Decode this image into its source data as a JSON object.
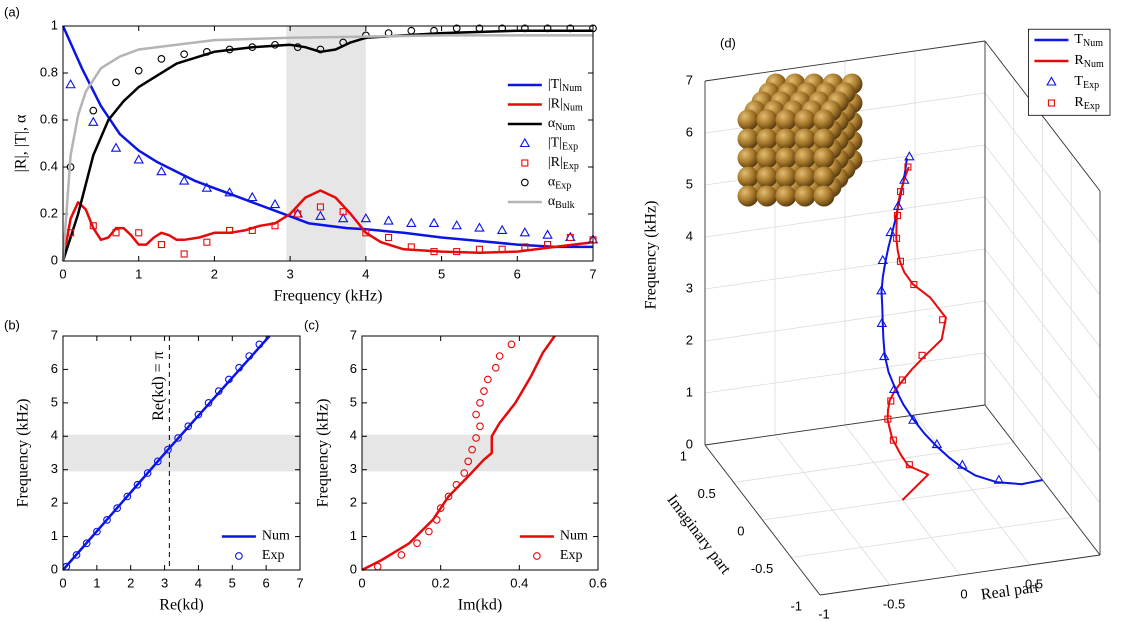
{
  "chart_data": [
    {
      "type": "line",
      "panel_label": "(a)",
      "xlabel": "Frequency (kHz)",
      "ylabel": "|R|, |T|, α",
      "xlim": [
        0,
        7
      ],
      "xticks": [
        0,
        1,
        2,
        3,
        4,
        5,
        6,
        7
      ],
      "ylim": [
        0,
        1
      ],
      "yticks": [
        0,
        0.2,
        0.4,
        0.6,
        0.8,
        1
      ],
      "shaded_xlim": [
        2.95,
        4
      ],
      "legend": "center right",
      "series": [
        {
          "name": "|T|",
          "subscript": "Num",
          "color": "#0a14e6",
          "x": [
            0,
            0.25,
            0.5,
            0.75,
            1,
            1.25,
            1.5,
            1.75,
            2,
            2.25,
            2.5,
            2.75,
            3,
            3.25,
            3.5,
            3.75,
            4,
            4.5,
            5,
            5.5,
            6,
            6.5,
            7
          ],
          "y": [
            1,
            0.82,
            0.66,
            0.54,
            0.47,
            0.42,
            0.38,
            0.34,
            0.31,
            0.28,
            0.25,
            0.22,
            0.19,
            0.16,
            0.15,
            0.14,
            0.135,
            0.12,
            0.1,
            0.085,
            0.07,
            0.06,
            0.06
          ]
        },
        {
          "name": "|R|",
          "subscript": "Num",
          "color": "#e60a0a",
          "x": [
            0,
            0.1,
            0.2,
            0.3,
            0.4,
            0.5,
            0.6,
            0.7,
            0.8,
            0.9,
            1,
            1.1,
            1.2,
            1.3,
            1.4,
            1.5,
            1.6,
            1.8,
            2,
            2.2,
            2.4,
            2.6,
            2.8,
            3,
            3.2,
            3.4,
            3.6,
            3.8,
            4,
            4.2,
            4.5,
            5,
            5.5,
            6,
            6.5,
            7
          ],
          "y": [
            0,
            0.18,
            0.25,
            0.22,
            0.14,
            0.09,
            0.1,
            0.14,
            0.14,
            0.11,
            0.07,
            0.07,
            0.1,
            0.12,
            0.11,
            0.09,
            0.09,
            0.1,
            0.12,
            0.12,
            0.13,
            0.15,
            0.16,
            0.2,
            0.27,
            0.3,
            0.27,
            0.2,
            0.12,
            0.08,
            0.05,
            0.04,
            0.035,
            0.04,
            0.06,
            0.08
          ]
        },
        {
          "name": "α",
          "subscript": "Num",
          "color": "#000000",
          "x": [
            0,
            0.2,
            0.4,
            0.6,
            0.8,
            1,
            1.25,
            1.5,
            2,
            2.5,
            3,
            3.2,
            3.4,
            3.6,
            3.8,
            4,
            4.5,
            5,
            6,
            7
          ],
          "y": [
            0,
            0.2,
            0.45,
            0.6,
            0.68,
            0.74,
            0.79,
            0.84,
            0.89,
            0.91,
            0.92,
            0.91,
            0.89,
            0.9,
            0.93,
            0.95,
            0.96,
            0.97,
            0.98,
            0.98
          ]
        },
        {
          "name": "|T|",
          "subscript": "Exp",
          "color": "#0a14e6",
          "marker": "triangle",
          "x": [
            0.1,
            0.4,
            0.7,
            1.0,
            1.3,
            1.6,
            1.9,
            2.2,
            2.5,
            2.8,
            3.1,
            3.4,
            3.7,
            4.0,
            4.3,
            4.6,
            4.9,
            5.2,
            5.5,
            5.8,
            6.1,
            6.4,
            6.7,
            7.0
          ],
          "y": [
            0.75,
            0.59,
            0.48,
            0.43,
            0.38,
            0.34,
            0.31,
            0.29,
            0.27,
            0.24,
            0.2,
            0.19,
            0.18,
            0.18,
            0.17,
            0.16,
            0.16,
            0.15,
            0.14,
            0.13,
            0.12,
            0.11,
            0.1,
            0.09
          ]
        },
        {
          "name": "|R|",
          "subscript": "Exp",
          "color": "#e60a0a",
          "marker": "square",
          "x": [
            0.1,
            0.4,
            0.7,
            1.0,
            1.3,
            1.6,
            1.9,
            2.2,
            2.5,
            2.8,
            3.1,
            3.4,
            3.7,
            4.0,
            4.3,
            4.6,
            4.9,
            5.2,
            5.5,
            5.8,
            6.1,
            6.4,
            6.7,
            7.0
          ],
          "y": [
            0.12,
            0.15,
            0.12,
            0.12,
            0.07,
            0.03,
            0.08,
            0.13,
            0.13,
            0.15,
            0.2,
            0.23,
            0.21,
            0.12,
            0.1,
            0.06,
            0.04,
            0.04,
            0.05,
            0.05,
            0.06,
            0.07,
            0.1,
            0.09
          ]
        },
        {
          "name": "α",
          "subscript": "Exp",
          "color": "#000000",
          "marker": "circle",
          "x": [
            0.1,
            0.4,
            0.7,
            1.0,
            1.3,
            1.6,
            1.9,
            2.2,
            2.5,
            2.8,
            3.1,
            3.4,
            3.7,
            4.0,
            4.3,
            4.6,
            4.9,
            5.2,
            5.5,
            5.8,
            6.1,
            6.4,
            6.7,
            7.0
          ],
          "y": [
            0.4,
            0.64,
            0.76,
            0.81,
            0.86,
            0.88,
            0.89,
            0.9,
            0.91,
            0.92,
            0.91,
            0.9,
            0.93,
            0.96,
            0.97,
            0.98,
            0.98,
            0.99,
            0.99,
            0.99,
            0.99,
            0.99,
            0.99,
            0.99
          ]
        },
        {
          "name": "α",
          "subscript": "Bulk",
          "color": "#b4b4b4",
          "x": [
            0,
            0.1,
            0.2,
            0.3,
            0.5,
            0.75,
            1,
            1.5,
            2,
            3,
            4,
            5,
            6,
            7
          ],
          "y": [
            0,
            0.45,
            0.62,
            0.72,
            0.82,
            0.87,
            0.9,
            0.92,
            0.94,
            0.95,
            0.955,
            0.96,
            0.96,
            0.96
          ]
        }
      ]
    },
    {
      "type": "line",
      "panel_label": "(b)",
      "xlabel": "Re(kd)",
      "ylabel": "Frequency (kHz)",
      "xlim": [
        0,
        7
      ],
      "xticks": [
        0,
        1,
        2,
        3,
        4,
        5,
        6,
        7
      ],
      "ylim": [
        0,
        7
      ],
      "yticks": [
        0,
        1,
        2,
        3,
        4,
        5,
        6,
        7
      ],
      "shaded_ylim": [
        2.95,
        4.05
      ],
      "vline": 3.14159,
      "vline_label": "Re(kd) = π",
      "legend": "lower right",
      "series": [
        {
          "name": "Num",
          "color": "#0a14e6",
          "x": [
            0,
            3.1,
            6.1
          ],
          "y": [
            0,
            3.6,
            7
          ]
        },
        {
          "name": "Exp",
          "color": "#0a14e6",
          "marker": "circle",
          "x": [
            0.1,
            0.4,
            0.7,
            1.0,
            1.3,
            1.6,
            1.9,
            2.2,
            2.5,
            2.8,
            3.1,
            3.4,
            3.7,
            4.0,
            4.3,
            4.6,
            4.9,
            5.2,
            5.5,
            5.8
          ],
          "y": [
            0.1,
            0.45,
            0.8,
            1.15,
            1.5,
            1.85,
            2.2,
            2.55,
            2.9,
            3.25,
            3.6,
            3.95,
            4.3,
            4.65,
            5.0,
            5.35,
            5.7,
            6.05,
            6.4,
            6.75
          ]
        }
      ]
    },
    {
      "type": "line",
      "panel_label": "(c)",
      "xlabel": "Im(kd)",
      "ylabel": "Frequency (kHz)",
      "xlim": [
        0,
        0.6
      ],
      "xticks": [
        0,
        0.2,
        0.4,
        0.6
      ],
      "ylim": [
        0,
        7
      ],
      "yticks": [
        0,
        1,
        2,
        3,
        4,
        5,
        6,
        7
      ],
      "shaded_ylim": [
        2.95,
        4.05
      ],
      "legend": "lower right",
      "series": [
        {
          "name": "Num",
          "color": "#e60a0a",
          "x": [
            0,
            0.05,
            0.12,
            0.18,
            0.22,
            0.27,
            0.31,
            0.33,
            0.33,
            0.35,
            0.39,
            0.43,
            0.46,
            0.49
          ],
          "y": [
            0,
            0.3,
            0.8,
            1.5,
            2.2,
            2.8,
            3.3,
            3.5,
            4.0,
            4.4,
            5,
            5.8,
            6.5,
            7
          ]
        },
        {
          "name": "Exp",
          "color": "#e60a0a",
          "marker": "circle",
          "x": [
            0.04,
            0.1,
            0.14,
            0.17,
            0.19,
            0.2,
            0.22,
            0.24,
            0.26,
            0.27,
            0.28,
            0.29,
            0.3,
            0.29,
            0.3,
            0.31,
            0.32,
            0.34,
            0.35,
            0.38
          ],
          "y": [
            0.1,
            0.45,
            0.8,
            1.15,
            1.5,
            1.85,
            2.2,
            2.55,
            2.9,
            3.25,
            3.6,
            3.95,
            4.3,
            4.65,
            5.0,
            5.35,
            5.7,
            6.05,
            6.4,
            6.75
          ]
        }
      ]
    },
    {
      "type": "line3d",
      "panel_label": "(d)",
      "xlabel": "Real part",
      "ylabel": "Imaginary part",
      "zlabel": "Frequency (kHz)",
      "xlim": [
        -1,
        1
      ],
      "xticks": [
        -1,
        -0.5,
        0,
        0.5
      ],
      "ylim": [
        -1,
        1
      ],
      "yticks": [
        -1,
        -0.5,
        0,
        0.5,
        1
      ],
      "zlim": [
        0,
        7
      ],
      "zticks": [
        0,
        1,
        2,
        3,
        4,
        5,
        6,
        7
      ],
      "legend": "upper right",
      "series": [
        {
          "name": "T",
          "subscript": "Num",
          "color": "#0a14e6",
          "z": [
            0,
            0.25,
            0.5,
            0.75,
            1,
            1.25,
            1.5,
            1.75,
            2,
            2.25,
            2.5,
            2.75,
            3,
            3.25,
            3.5,
            3.75,
            4,
            4.25,
            4.5,
            4.75,
            5,
            5.25,
            5.5,
            5.75,
            6,
            6.25,
            6.5
          ],
          "x": [
            1,
            0.782,
            0.564,
            0.399,
            0.286,
            0.189,
            0.099,
            0.02,
            -0.046,
            -0.101,
            -0.138,
            -0.165,
            -0.17,
            -0.16,
            -0.149,
            -0.139,
            -0.133,
            -0.113,
            -0.089,
            -0.064,
            -0.039,
            -0.017,
            0.002,
            0.019,
            0.031,
            0.041,
            0.047
          ],
          "y": [
            0,
            -0.171,
            -0.259,
            -0.301,
            -0.334,
            -0.352,
            -0.346,
            -0.329,
            -0.296,
            -0.261,
            -0.209,
            -0.16,
            -0.105,
            -0.057,
            -0.019,
            0.013,
            0.042,
            0.065,
            0.081,
            0.09,
            0.092,
            0.088,
            0.085,
            0.078,
            0.063,
            0.051,
            0.038
          ]
        },
        {
          "name": "R",
          "subscript": "Num",
          "color": "#e60a0a",
          "z": [
            0,
            0.25,
            0.5,
            0.75,
            1,
            1.25,
            1.5,
            1.75,
            2,
            2.25,
            2.5,
            2.75,
            3,
            3.25,
            3.5,
            3.75,
            4,
            4.25,
            4.5,
            4.75,
            5,
            5.25,
            5.5,
            5.75,
            6,
            6.25,
            6.5
          ],
          "x": [
            0,
            0.227,
            0.078,
            0.019,
            -0.02,
            -0.055,
            -0.085,
            -0.099,
            -0.105,
            -0.089,
            -0.054,
            0.004,
            0.088,
            0.21,
            0.281,
            0.216,
            0.106,
            0.045,
            0.006,
            -0.016,
            -0.031,
            -0.037,
            -0.04,
            -0.04,
            -0.03,
            -0.012,
            0.017
          ],
          "y": [
            0,
            0.105,
            0.091,
            0.067,
            0.128,
            0.084,
            0.053,
            0.012,
            -0.033,
            -0.081,
            -0.129,
            -0.16,
            -0.179,
            -0.17,
            -0.071,
            0.04,
            0.075,
            0.078,
            0.06,
            0.047,
            0.033,
            0.015,
            -0.002,
            -0.021,
            -0.04,
            -0.059,
            -0.068
          ]
        },
        {
          "name": "T",
          "subscript": "Exp",
          "color": "#0a14e6",
          "marker": "triangle",
          "z": [
            0.5,
            1,
            1.5,
            2,
            2.5,
            3,
            3.5,
            4,
            4.5,
            5,
            5.5,
            6,
            6.5
          ],
          "x": [
            0.59,
            0.3,
            0.11,
            -0.05,
            -0.15,
            -0.18,
            -0.16,
            -0.13,
            -0.1,
            -0.04,
            0.01,
            0.05,
            0.07
          ],
          "y": [
            -0.24,
            -0.31,
            -0.33,
            -0.31,
            -0.22,
            -0.12,
            -0.03,
            0.05,
            0.1,
            0.11,
            0.1,
            0.09,
            0.05
          ]
        },
        {
          "name": "R",
          "subscript": "Exp",
          "color": "#e60a0a",
          "marker": "square",
          "z": [
            0.5,
            1,
            1.5,
            2,
            2.5,
            3,
            3.5,
            4,
            4.5,
            5,
            5.5,
            6,
            6.5
          ],
          "x": [
            0.09,
            -0.02,
            -0.08,
            -0.1,
            -0.05,
            0.07,
            0.25,
            0.11,
            0.01,
            -0.03,
            -0.04,
            -0.03,
            0.01
          ],
          "y": [
            0.1,
            0.11,
            0.06,
            -0.04,
            -0.12,
            -0.17,
            -0.09,
            0.07,
            0.06,
            0.03,
            -0.01,
            -0.04,
            -0.07
          ]
        }
      ]
    }
  ]
}
